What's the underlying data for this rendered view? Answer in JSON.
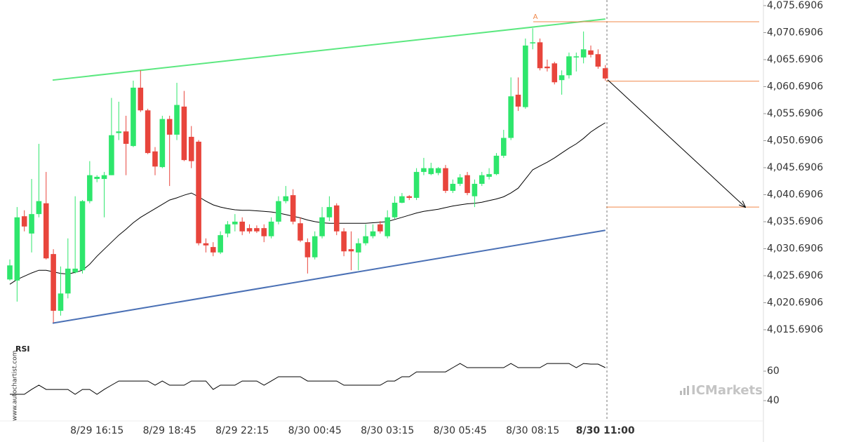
{
  "chart_data": [
    {
      "type": "candlestick",
      "categories": [
        null,
        null,
        null,
        null,
        null,
        null,
        null,
        null,
        null,
        null,
        null,
        null,
        "8/29 16:15",
        null,
        null,
        null,
        null,
        null,
        null,
        null,
        null,
        null,
        "8/29 18:45",
        null,
        null,
        null,
        null,
        null,
        null,
        null,
        null,
        null,
        "8/29 22:15",
        null,
        null,
        null,
        null,
        null,
        null,
        null,
        null,
        null,
        "8/30 00:45",
        null,
        null,
        null,
        null,
        null,
        null,
        null,
        null,
        null,
        "8/30 03:15",
        null,
        null,
        null,
        null,
        null,
        null,
        null,
        null,
        null,
        "8/30 05:45",
        null,
        null,
        null,
        null,
        null,
        null,
        null,
        null,
        null,
        "8/30 08:15",
        null,
        null,
        null,
        null,
        null,
        null,
        null,
        null,
        null,
        "8/30 11:00"
      ],
      "open": [
        4025.0,
        4024.8,
        4036.7,
        4033.5,
        4037.1,
        4039.1,
        4029.7,
        4019.2,
        4022.4,
        4026.3,
        4026.7,
        4039.5,
        4043.6,
        4043.6,
        4044.3,
        4052.1,
        4052.4,
        4049.7,
        4060.5,
        4056.3,
        4048.7,
        4045.8,
        4054.7,
        4051.8,
        4057.0,
        4051.4,
        4050.5,
        4031.7,
        4031.0,
        4030.0,
        4033.5,
        4035.2,
        4035.7,
        4034.5,
        4034.5,
        4034.5,
        4033.0,
        4035.7,
        4039.5,
        4040.6,
        4035.4,
        4031.9,
        4029.1,
        4033.0,
        4036.5,
        4038.7,
        4033.9,
        4030.6,
        4030.0,
        4031.7,
        4033.0,
        4035.2,
        4033.0,
        4036.5,
        4039.2,
        4040.4,
        4040.1,
        4044.9,
        4044.5,
        4044.7,
        4045.6,
        4041.4,
        4042.7,
        4044.3,
        4040.4,
        4042.7,
        4044.0,
        4044.5,
        4047.9,
        4051.2,
        4059.2,
        4056.9,
        4068.7,
        4068.9,
        4064.4,
        4065.0,
        4061.9,
        4062.8,
        4066.1,
        4066.1,
        4067.4,
        4066.7,
        4064.1
      ],
      "high": [
        4028.7,
        4038.4,
        4037.8,
        4043.6,
        4050.1,
        4044.9,
        4030.6,
        4027.4,
        4032.6,
        4040.4,
        4039.7,
        4046.9,
        4044.3,
        4044.9,
        4058.6,
        4057.9,
        4055.3,
        4061.8,
        4063.7,
        4056.6,
        4049.5,
        4055.3,
        4055.3,
        4061.4,
        4059.9,
        4053.4,
        4050.8,
        4032.6,
        4031.9,
        4033.9,
        4035.8,
        4037.1,
        4036.5,
        4035.2,
        4035.0,
        4035.2,
        4036.5,
        4040.4,
        4042.3,
        4041.7,
        4036.5,
        4032.6,
        4033.9,
        4038.4,
        4040.4,
        4039.1,
        4034.5,
        4033.9,
        4032.6,
        4035.2,
        4035.2,
        4035.8,
        4037.8,
        4040.4,
        4041.0,
        4040.6,
        4045.6,
        4047.5,
        4046.6,
        4045.8,
        4046.2,
        4043.5,
        4044.5,
        4044.9,
        4043.5,
        4044.9,
        4045.6,
        4048.4,
        4052.7,
        4062.4,
        4062.4,
        4069.6,
        4071.5,
        4069.6,
        4065.7,
        4065.3,
        4063.7,
        4067.0,
        4067.0,
        4070.9,
        4068.3,
        4067.6,
        4064.7
      ],
      "low": [
        4024.8,
        4020.9,
        4033.9,
        4030.0,
        4036.5,
        4028.7,
        4017.0,
        4018.3,
        4021.5,
        4026.1,
        4026.1,
        4039.1,
        4043.0,
        4036.5,
        4044.3,
        4050.8,
        4044.3,
        4049.5,
        4056.0,
        4048.2,
        4044.3,
        4045.6,
        4042.3,
        4050.8,
        4046.9,
        4045.6,
        4031.3,
        4030.0,
        4029.3,
        4029.7,
        4032.8,
        4033.9,
        4033.2,
        4033.5,
        4033.6,
        4031.9,
        4032.6,
        4035.2,
        4039.1,
        4035.2,
        4031.9,
        4026.1,
        4028.7,
        4032.6,
        4035.8,
        4033.2,
        4029.3,
        4026.7,
        4026.7,
        4031.3,
        4032.6,
        4033.5,
        4032.6,
        4036.2,
        4039.1,
        4039.7,
        4039.7,
        4044.3,
        4044.3,
        4044.3,
        4041.0,
        4041.0,
        4042.3,
        4040.6,
        4038.4,
        4042.3,
        4043.5,
        4044.3,
        4047.5,
        4050.8,
        4056.2,
        4056.6,
        4067.6,
        4063.7,
        4063.5,
        4061.1,
        4059.2,
        4062.2,
        4063.5,
        4065.0,
        4066.1,
        4064.0,
        4061.8
      ],
      "close": [
        4027.6,
        4036.5,
        4034.8,
        4037.1,
        4039.5,
        4028.9,
        4019.2,
        4022.4,
        4027.0,
        4027.0,
        4039.5,
        4044.3,
        4044.0,
        4044.3,
        4051.7,
        4052.4,
        4050.1,
        4060.5,
        4056.3,
        4048.4,
        4045.9,
        4054.7,
        4051.8,
        4057.3,
        4047.1,
        4046.9,
        4031.7,
        4031.3,
        4030.0,
        4033.2,
        4035.2,
        4035.7,
        4033.9,
        4033.9,
        4033.9,
        4033.0,
        4035.7,
        4039.5,
        4040.4,
        4035.7,
        4032.2,
        4029.1,
        4033.0,
        4036.5,
        4038.4,
        4033.9,
        4030.2,
        4030.2,
        4031.7,
        4033.0,
        4033.9,
        4033.9,
        4036.5,
        4039.2,
        4040.4,
        4040.1,
        4044.9,
        4045.6,
        4045.6,
        4045.6,
        4041.4,
        4042.7,
        4043.9,
        4041.0,
        4042.7,
        4044.3,
        4044.5,
        4047.9,
        4051.2,
        4058.9,
        4057.0,
        4068.3,
        4068.9,
        4064.1,
        4064.1,
        4061.5,
        4062.8,
        4066.3,
        4066.3,
        4067.6,
        4066.6,
        4064.4,
        4062.2
      ],
      "up_color": "#2ee66c",
      "down_color": "#e8453c",
      "overlays": [
        {
          "color": "#000000",
          "values": [
            4024.1,
            4025.0,
            4025.6,
            4026.2,
            4026.7,
            4026.7,
            4026.4,
            4026.1,
            4026.0,
            4026.3,
            4026.7,
            4027.8,
            4029.3,
            4030.6,
            4031.9,
            4033.2,
            4034.3,
            4035.5,
            4036.5,
            4037.3,
            4038.1,
            4038.9,
            4039.7,
            4040.1,
            4040.6,
            4041.0,
            4040.3,
            4039.5,
            4038.8,
            4038.4,
            4038.1,
            4037.9,
            4037.8,
            4037.8,
            4037.7,
            4037.6,
            4037.5,
            4037.3,
            4037.0,
            4036.7,
            4036.4,
            4036.0,
            4035.7,
            4035.5,
            4035.4,
            4035.4,
            4035.4,
            4035.4,
            4035.4,
            4035.4,
            4035.5,
            4035.6,
            4035.7,
            4036.1,
            4036.5,
            4036.9,
            4037.3,
            4037.6,
            4037.8,
            4038.0,
            4038.3,
            4038.6,
            4038.8,
            4039.0,
            4039.1,
            4039.3,
            4039.6,
            4039.9,
            4040.3,
            4041.0,
            4041.9,
            4043.6,
            4045.3,
            4046.0,
            4046.7,
            4047.5,
            4048.4,
            4049.3,
            4050.1,
            4051.1,
            4052.3,
            4053.2,
            4054.0
          ]
        }
      ],
      "channel": {
        "upper": {
          "color": "#5ce880",
          "values": [
            4061.9,
            4073.2
          ]
        },
        "lower": {
          "color": "#4a70b5",
          "values": [
            4016.9,
            4034.1
          ]
        }
      },
      "levels": [
        {
          "value": 4072.7,
          "label": "A"
        },
        {
          "value": 4061.7
        },
        {
          "value": 4038.4
        }
      ],
      "level_color": "#f0884a",
      "ylim": [
        4013.35,
        4076.73
      ],
      "yticks": [
        {
          "value": 4075.6906,
          "label": "4,075.6906"
        },
        {
          "value": 4070.6906,
          "label": "4,070.6906"
        },
        {
          "value": 4065.6906,
          "label": "4,065.6906"
        },
        {
          "value": 4060.6906,
          "label": "4,060.6906"
        },
        {
          "value": 4055.6906,
          "label": "4,055.6906"
        },
        {
          "value": 4050.6906,
          "label": "4,050.6906"
        },
        {
          "value": 4045.6906,
          "label": "4,045.6906"
        },
        {
          "value": 4040.6906,
          "label": "4,040.6906"
        },
        {
          "value": 4035.6906,
          "label": "4,035.6906"
        },
        {
          "value": 4030.6906,
          "label": "4,030.6906"
        },
        {
          "value": 4025.6906,
          "label": "4,025.6906"
        },
        {
          "value": 4020.6906,
          "label": "4,020.6906"
        },
        {
          "value": 4015.6906,
          "label": "4,015.6906"
        }
      ]
    },
    {
      "type": "line",
      "title": "RSI",
      "color": "#000000",
      "values": [
        44.3,
        44.3,
        44.3,
        47.6,
        50.5,
        47.6,
        47.6,
        47.6,
        47.6,
        44.3,
        47.6,
        47.6,
        44.3,
        47.6,
        50.5,
        53.3,
        53.3,
        53.3,
        53.3,
        53.3,
        50.5,
        53.3,
        50.5,
        50.5,
        50.5,
        53.3,
        53.3,
        53.3,
        47.6,
        50.5,
        50.5,
        50.5,
        53.3,
        53.3,
        53.3,
        50.5,
        53.3,
        56.2,
        56.2,
        56.2,
        56.2,
        53.3,
        53.3,
        53.3,
        53.3,
        53.3,
        50.5,
        50.5,
        50.5,
        50.5,
        50.5,
        50.5,
        53.3,
        53.3,
        56.2,
        56.2,
        59.5,
        59.5,
        59.5,
        59.5,
        59.5,
        62.4,
        65.2,
        62.4,
        62.4,
        62.4,
        62.4,
        62.4,
        62.4,
        65.2,
        62.4,
        62.4,
        62.4,
        62.4,
        65.2,
        65.2,
        65.2,
        65.2,
        62.4,
        65.2,
        64.8,
        64.8,
        62.4
      ],
      "ylim": [
        26.2,
        78.6
      ],
      "yticks": [
        60,
        40
      ]
    }
  ],
  "watermarks": {
    "vertical": "www.autochartist.com",
    "logo": "ICMarkets"
  }
}
